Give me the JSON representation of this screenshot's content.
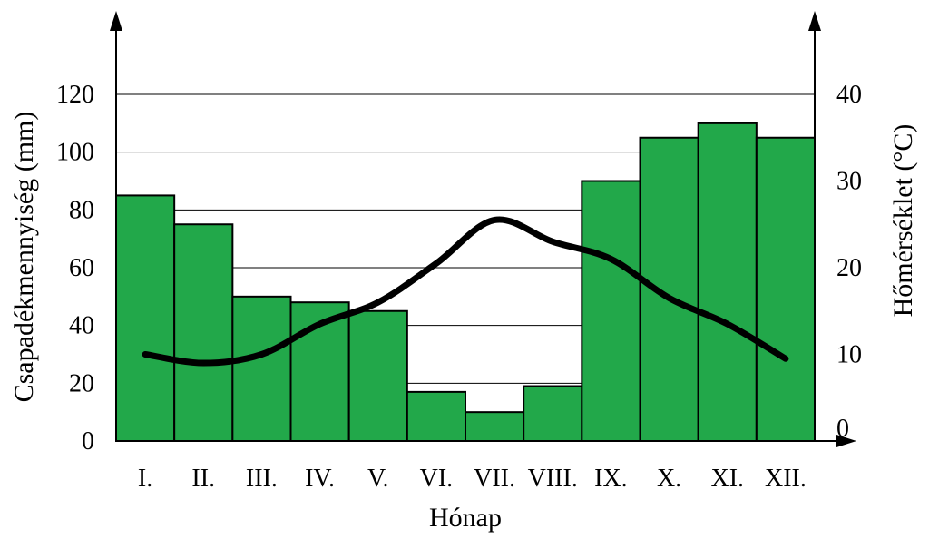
{
  "chart_data": {
    "type": "bar",
    "categories": [
      "I.",
      "II.",
      "III.",
      "IV.",
      "V.",
      "VI.",
      "VII.",
      "VIII.",
      "IX.",
      "X.",
      "XI.",
      "XII."
    ],
    "series": [
      {
        "type": "bar",
        "axis": "left",
        "values": [
          85,
          75,
          50,
          48,
          45,
          17,
          10,
          19,
          90,
          105,
          110,
          105
        ],
        "color": "#22a84a"
      },
      {
        "type": "line",
        "axis": "right",
        "values": [
          10,
          9,
          10,
          13.5,
          16,
          20.5,
          25.5,
          23,
          21,
          16.5,
          13.5,
          9.5
        ],
        "color": "#000000"
      }
    ],
    "xlabel": "Hónap",
    "ylabel": "Csapadékmennyiség (mm)",
    "y2label": "Hőmérséklet (°C)",
    "ylim": [
      0,
      120
    ],
    "y2lim": [
      0,
      40
    ],
    "yticks": [
      0,
      20,
      40,
      60,
      80,
      100,
      120
    ],
    "y2ticks": [
      0,
      10,
      20,
      30,
      40
    ],
    "grid": true
  }
}
